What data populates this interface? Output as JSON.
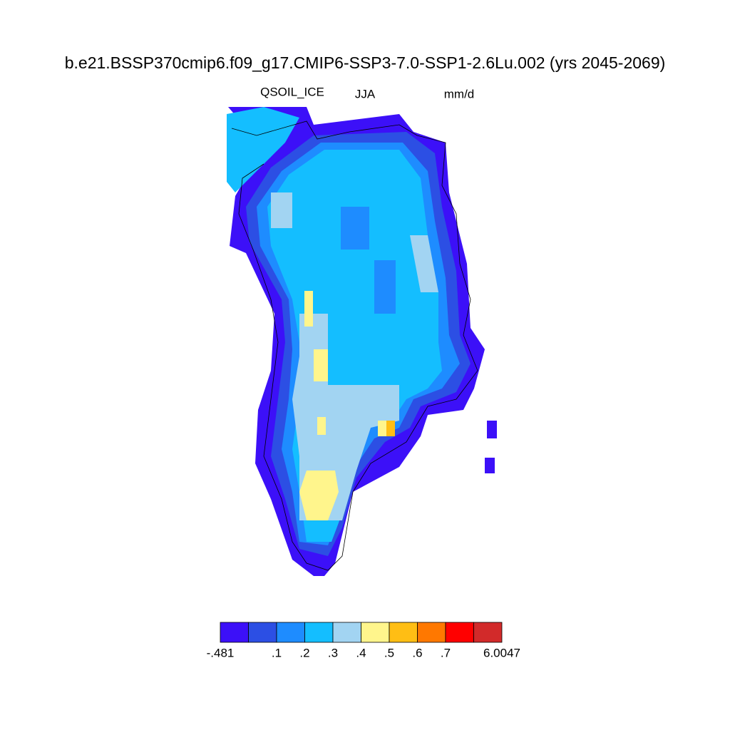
{
  "header": {
    "title": "b.e21.BSSP370cmip6.f09_g17.CMIP6-SSP3-7.0-SSP1-2.6Lu.002 (yrs 2045-2069)",
    "variable": "QSOIL_ICE",
    "season": "JJA",
    "units": "mm/d"
  },
  "colorbar": {
    "colors": [
      "#3c10f8",
      "#2c4fe4",
      "#1e8cff",
      "#14beff",
      "#a2d4f2",
      "#fff58c",
      "#ffbe14",
      "#ff7800",
      "#ff0000",
      "#d22a2a"
    ],
    "labels": [
      "-.481",
      ".1",
      ".2",
      ".3",
      ".4",
      ".5",
      ".6",
      ".7",
      "6.0047"
    ]
  }
}
